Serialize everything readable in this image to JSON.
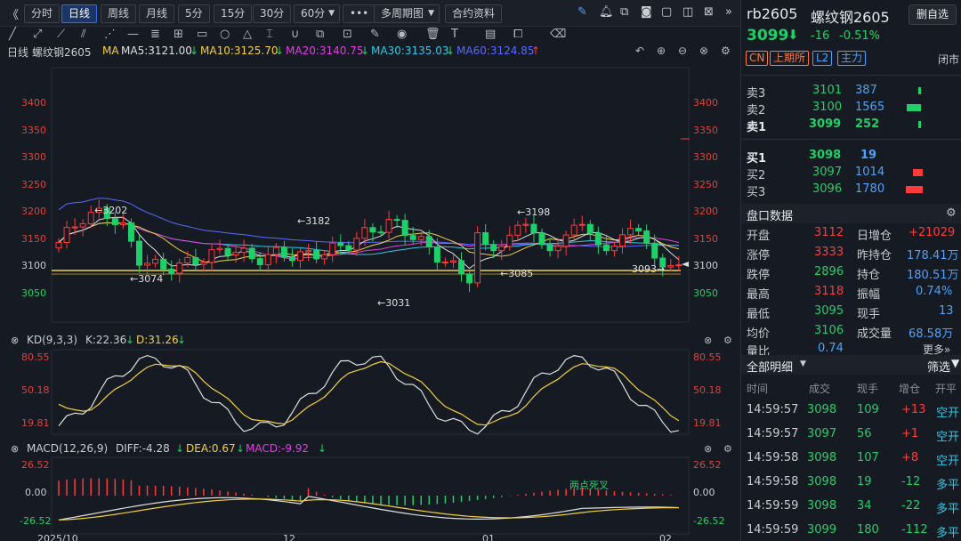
{
  "toolbar": {
    "nav_back": "《",
    "buttons": [
      "分时",
      "日线",
      "周线",
      "月线",
      "5分",
      "15分",
      "30分",
      "60分",
      "•••",
      "多周期图",
      "合约资料"
    ],
    "active": "日线",
    "icons": [
      "pen-icon",
      "bell-icon",
      "copy-icon",
      "camera-icon",
      "window-icon",
      "close-icon",
      "collapse-icon"
    ]
  },
  "ma": {
    "period_label": "日线",
    "symbol": "螺纹钢2605",
    "ma_label": "MA",
    "ma5": "MA5:3121.00",
    "ma10": "MA10:3125.70",
    "ma20": "MA20:3140.75",
    "ma30": "MA30:3135.03",
    "ma60": "MA60:3124.85",
    "arrow_down": "↓",
    "arrow_up": "↑",
    "colors": {
      "ma5": "#e0e0e0",
      "ma10": "#f3d13a",
      "ma20": "#e040e0",
      "ma30": "#2ec9e6",
      "ma60": "#5a6aff"
    }
  },
  "price_axis": [
    "3400",
    "3350",
    "3300",
    "3250",
    "3200",
    "3150",
    "3100",
    "3050"
  ],
  "annotations": {
    "high1": "←3202",
    "high2": "←3182",
    "high3": "←3198",
    "low1": "←3074",
    "low2": "←3031",
    "low3": "←3085",
    "last": "3093→"
  },
  "kd": {
    "title": "KD(9,3,3)",
    "k": "K:22.36",
    "d": "D:31.26",
    "axis": [
      "80.55",
      "50.18",
      "19.81"
    ]
  },
  "macd": {
    "title": "MACD(12,26,9)",
    "diff": "DIFF:-4.28",
    "dea": "DEA:0.67",
    "macd": "MACD:-9.92",
    "axis": [
      "26.52",
      "0.00",
      "-26.52"
    ],
    "cross_label": "两点死叉"
  },
  "date_axis": [
    "2025/10",
    "12",
    "01",
    "02"
  ],
  "quote": {
    "symbol": "rb2605",
    "name": "螺纹钢2605",
    "remove_btn": "删自选",
    "price": "3099",
    "change": "-16",
    "change_pct": "-0.51%",
    "tags": [
      "CN",
      "上期所",
      "L2",
      "主力"
    ],
    "status": "闭市"
  },
  "orderbook": {
    "asks": [
      {
        "label": "卖3",
        "price": "3101",
        "vol": "387"
      },
      {
        "label": "卖2",
        "price": "3100",
        "vol": "1565"
      },
      {
        "label": "卖1",
        "price": "3099",
        "vol": "252"
      }
    ],
    "bids": [
      {
        "label": "买1",
        "price": "3098",
        "vol": "19"
      },
      {
        "label": "买2",
        "price": "3097",
        "vol": "1014"
      },
      {
        "label": "买3",
        "price": "3096",
        "vol": "1780"
      }
    ]
  },
  "market_data": {
    "title": "盘口数据",
    "rows": [
      {
        "k1": "开盘",
        "v1": "3112",
        "k2": "日增仓",
        "v2": "+21029"
      },
      {
        "k1": "涨停",
        "v1": "3333",
        "k2": "昨持仓",
        "v2": "178.41万"
      },
      {
        "k1": "跌停",
        "v1": "2896",
        "k2": "持仓",
        "v2": "180.51万"
      },
      {
        "k1": "最高",
        "v1": "3118",
        "k2": "振幅",
        "v2": "0.74%"
      },
      {
        "k1": "最低",
        "v1": "3095",
        "k2": "现手",
        "v2": "13"
      },
      {
        "k1": "均价",
        "v1": "3106",
        "k2": "成交量",
        "v2": "68.58万"
      },
      {
        "k1": "量比",
        "v1": "0.74",
        "k2": "",
        "v2": ""
      }
    ],
    "more": "更多»"
  },
  "ticks": {
    "title": "全部明细",
    "filter": "筛选",
    "headers": [
      "时间",
      "成交",
      "现手",
      "增仓",
      "开平"
    ],
    "rows": [
      {
        "time": "14:59:57",
        "price": "3098",
        "vol": "109",
        "oi": "+13",
        "type": "空开"
      },
      {
        "time": "14:59:57",
        "price": "3097",
        "vol": "56",
        "oi": "+1",
        "type": "空开"
      },
      {
        "time": "14:59:58",
        "price": "3098",
        "vol": "107",
        "oi": "+8",
        "type": "空开"
      },
      {
        "time": "14:59:58",
        "price": "3098",
        "vol": "19",
        "oi": "-12",
        "type": "多平"
      },
      {
        "time": "14:59:59",
        "price": "3098",
        "vol": "34",
        "oi": "-22",
        "type": "多平"
      },
      {
        "time": "14:59:59",
        "price": "3099",
        "vol": "180",
        "oi": "-112",
        "type": "多平"
      }
    ]
  }
}
